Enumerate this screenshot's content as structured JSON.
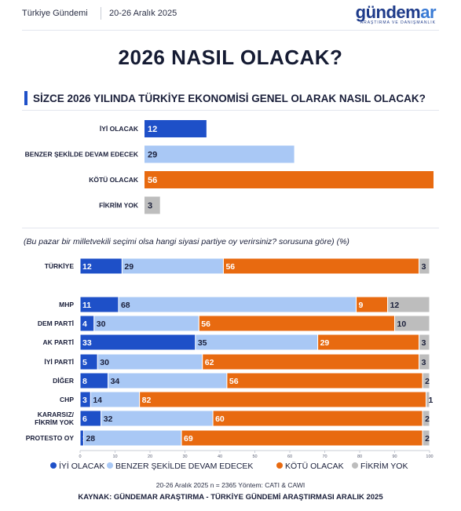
{
  "header": {
    "brand": "Türkiye Gündemi",
    "dates": "20-26 Aralık 2025",
    "logo_main": "gündem",
    "logo_accent": "ar",
    "logo_sub": "ARAŞTIRMA VE DANIŞMANLIK"
  },
  "page_title": "2026 NASIL OLACAK?",
  "question": "SİZCE 2026 YILINDA TÜRKİYE EKONOMİSİ GENEL OLARAK NASIL OLACAK?",
  "note": "(Bu pazar bir milletvekili seçimi olsa hangi siyasi partiye oy verirsiniz? sorusuna göre) (%)",
  "footer": {
    "method": "20-26 Aralık 2025 n = 2365 Yöntem: CATI & CAWI",
    "source": "KAYNAK: GÜNDEMAR ARAŞTIRMA - TÜRKİYE GÜNDEMİ ARAŞTIRMASI ARALIK 2025"
  },
  "colors": {
    "iyi": "#1e50c8",
    "benzer": "#a9c8f5",
    "kotu": "#e86a10",
    "fikrim": "#bdbdbd"
  },
  "chart_data": [
    {
      "type": "bar",
      "orientation": "horizontal",
      "categories": [
        "İYİ OLACAK",
        "BENZER ŞEKİLDE DEVAM EDECEK",
        "KÖTÜ OLACAK",
        "FİKRİM YOK"
      ],
      "values": [
        12,
        29,
        56,
        3
      ],
      "color_keys": [
        "iyi",
        "benzer",
        "kotu",
        "fikrim"
      ]
    },
    {
      "type": "bar",
      "orientation": "horizontal",
      "stacked": true,
      "categories": [
        "TÜRKİYE",
        "MHP",
        "DEM PARTİ",
        "AK PARTİ",
        "İYİ PARTİ",
        "DİĞER",
        "CHP",
        "KARARSIZ/ FİKRİM YOK",
        "PROTESTO OY"
      ],
      "series": [
        {
          "name": "İYİ OLACAK",
          "key": "iyi",
          "values": [
            12,
            11,
            4,
            33,
            5,
            8,
            3,
            6,
            1
          ]
        },
        {
          "name": "BENZER ŞEKİLDE DEVAM EDECEK",
          "key": "benzer",
          "values": [
            29,
            68,
            30,
            35,
            30,
            34,
            14,
            32,
            28
          ]
        },
        {
          "name": "KÖTÜ OLACAK",
          "key": "kotu",
          "values": [
            56,
            9,
            56,
            29,
            62,
            56,
            82,
            60,
            69
          ]
        },
        {
          "name": "FİKRİM YOK",
          "key": "fikrim",
          "values": [
            3,
            12,
            10,
            3,
            3,
            2,
            1,
            2,
            2
          ]
        }
      ],
      "xlim": [
        0,
        100
      ],
      "xticks": [
        0,
        10,
        20,
        30,
        40,
        50,
        60,
        70,
        80,
        90,
        100
      ],
      "legend_position": "bottom"
    }
  ]
}
